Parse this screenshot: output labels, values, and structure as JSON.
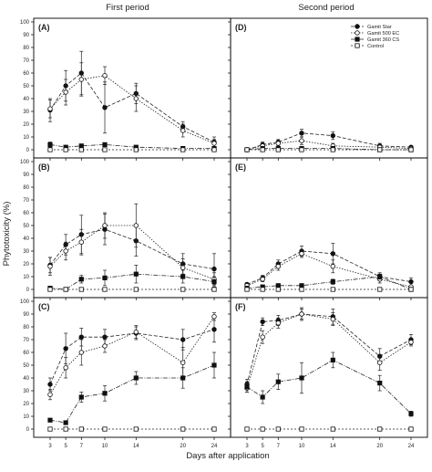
{
  "chart_data": {
    "type": "line",
    "column_titles": [
      "First period",
      "Second period"
    ],
    "ylabel": "Phytotoxicity (%)",
    "xlabel": "Days after application",
    "x": [
      3,
      5,
      7,
      10,
      14,
      20,
      24
    ],
    "x_tick_labels": [
      "3",
      "5",
      "7",
      "10",
      "14",
      "20",
      "24"
    ],
    "ylim": [
      0,
      100
    ],
    "y_ticks": [
      0,
      10,
      20,
      30,
      40,
      50,
      60,
      70,
      80,
      90,
      100
    ],
    "grid": false,
    "legend": {
      "placement": "top-right of panel (D)",
      "entries": [
        {
          "name": "Gamit Star",
          "marker": "filled-circle"
        },
        {
          "name": "Gamit 500 EC",
          "marker": "open-circle"
        },
        {
          "name": "Gamit 360 CS",
          "marker": "filled-square"
        },
        {
          "name": "Control",
          "marker": "open-square"
        }
      ]
    },
    "panels": [
      {
        "label": "(A)",
        "column": 0,
        "row": 0,
        "series": [
          {
            "name": "Gamit Star",
            "values": [
              31,
              50,
              60,
              33,
              44,
              18,
              6
            ],
            "errors": [
              9,
              12,
              17,
              20,
              8,
              4,
              4
            ]
          },
          {
            "name": "Gamit 500 EC",
            "values": [
              32,
              45,
              55,
              58,
              40,
              15,
              5
            ],
            "errors": [
              7,
              10,
              13,
              7,
              10,
              5,
              3
            ]
          },
          {
            "name": "Gamit 360 CS",
            "values": [
              4,
              2,
              3,
              4,
              2,
              1,
              1
            ],
            "errors": [
              2,
              1,
              1,
              1,
              1,
              1,
              1
            ]
          },
          {
            "name": "Control",
            "values": [
              0,
              0,
              0,
              0,
              0,
              0,
              0
            ],
            "errors": [
              0,
              0,
              0,
              0,
              0,
              0,
              0
            ]
          }
        ]
      },
      {
        "label": "(B)",
        "column": 0,
        "row": 1,
        "series": [
          {
            "name": "Gamit Star",
            "values": [
              19,
              35,
              43,
              47,
              38,
              20,
              16
            ],
            "errors": [
              6,
              8,
              15,
              12,
              12,
              8,
              12
            ]
          },
          {
            "name": "Gamit 500 EC",
            "values": [
              18,
              30,
              37,
              50,
              50,
              17,
              8
            ],
            "errors": [
              7,
              7,
              10,
              10,
              17,
              7,
              5
            ]
          },
          {
            "name": "Gamit 360 CS",
            "values": [
              1,
              0,
              8,
              9,
              12,
              10,
              6
            ],
            "errors": [
              1,
              0,
              3,
              6,
              7,
              5,
              4
            ]
          },
          {
            "name": "Control",
            "values": [
              0,
              0,
              0,
              0,
              0,
              0,
              0
            ],
            "errors": [
              0,
              0,
              0,
              0,
              0,
              0,
              0
            ]
          }
        ]
      },
      {
        "label": "(C)",
        "column": 0,
        "row": 2,
        "series": [
          {
            "name": "Gamit Star",
            "values": [
              35,
              63,
              72,
              72,
              75,
              70,
              78
            ],
            "errors": [
              5,
              12,
              7,
              6,
              5,
              8,
              10
            ]
          },
          {
            "name": "Gamit 500 EC",
            "values": [
              27,
              48,
              60,
              65,
              76,
              52,
              88
            ],
            "errors": [
              4,
              8,
              10,
              5,
              5,
              12,
              3
            ]
          },
          {
            "name": "Gamit 360 CS",
            "values": [
              7,
              5,
              25,
              28,
              40,
              40,
              50
            ],
            "errors": [
              1,
              1,
              4,
              6,
              5,
              8,
              10
            ]
          },
          {
            "name": "Control",
            "values": [
              0,
              0,
              0,
              0,
              0,
              0,
              0
            ],
            "errors": [
              0,
              0,
              0,
              0,
              0,
              0,
              0
            ]
          }
        ]
      },
      {
        "label": "(D)",
        "column": 1,
        "row": 0,
        "series": [
          {
            "name": "Gamit Star",
            "values": [
              0,
              4,
              6,
              13,
              11,
              3,
              2
            ],
            "errors": [
              1,
              2,
              2,
              3,
              3,
              2,
              1
            ]
          },
          {
            "name": "Gamit 500 EC",
            "values": [
              0,
              3,
              5,
              7,
              3,
              2,
              1
            ],
            "errors": [
              1,
              1,
              2,
              3,
              2,
              1,
              1
            ]
          },
          {
            "name": "Gamit 360 CS",
            "values": [
              0,
              1,
              1,
              1,
              1,
              0,
              0
            ],
            "errors": [
              0,
              0,
              0,
              0,
              0,
              0,
              0
            ]
          },
          {
            "name": "Control",
            "values": [
              0,
              0,
              0,
              0,
              0,
              0,
              0
            ],
            "errors": [
              0,
              0,
              0,
              0,
              0,
              0,
              0
            ]
          }
        ]
      },
      {
        "label": "(E)",
        "column": 1,
        "row": 1,
        "series": [
          {
            "name": "Gamit Star",
            "values": [
              4,
              9,
              20,
              30,
              28,
              10,
              6
            ],
            "errors": [
              1,
              2,
              3,
              4,
              8,
              3,
              3
            ]
          },
          {
            "name": "Gamit 500 EC",
            "values": [
              3,
              8,
              18,
              28,
              18,
              8,
              2
            ],
            "errors": [
              1,
              2,
              3,
              3,
              5,
              3,
              1
            ]
          },
          {
            "name": "Gamit 360 CS",
            "values": [
              1,
              2,
              3,
              3,
              6,
              10,
              0
            ],
            "errors": [
              0,
              1,
              1,
              1,
              2,
              2,
              0
            ]
          },
          {
            "name": "Control",
            "values": [
              0,
              0,
              0,
              0,
              0,
              0,
              0
            ],
            "errors": [
              0,
              0,
              0,
              0,
              0,
              0,
              0
            ]
          }
        ]
      },
      {
        "label": "(F)",
        "column": 1,
        "row": 2,
        "series": [
          {
            "name": "Gamit Star",
            "values": [
              35,
              84,
              85,
              90,
              88,
              57,
              70
            ],
            "errors": [
              4,
              3,
              4,
              5,
              6,
              6,
              4
            ]
          },
          {
            "name": "Gamit 500 EC",
            "values": [
              32,
              72,
              83,
              90,
              86,
              52,
              68
            ],
            "errors": [
              3,
              5,
              4,
              4,
              5,
              6,
              3
            ]
          },
          {
            "name": "Gamit 360 CS",
            "values": [
              33,
              25,
              37,
              40,
              54,
              36,
              12
            ],
            "errors": [
              4,
              5,
              6,
              12,
              6,
              6,
              2
            ]
          },
          {
            "name": "Control",
            "values": [
              0,
              0,
              0,
              0,
              0,
              0,
              0
            ],
            "errors": [
              0,
              0,
              0,
              0,
              0,
              0,
              0
            ]
          }
        ]
      }
    ]
  }
}
